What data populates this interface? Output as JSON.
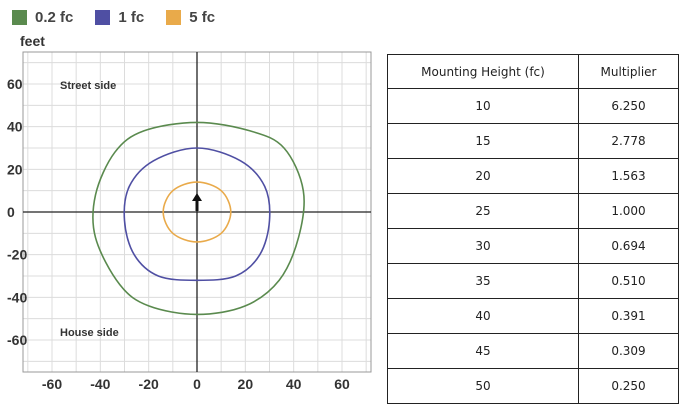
{
  "chart_data": [
    {
      "type": "line",
      "title": "",
      "ylabel": "feet",
      "xlim": [
        -72,
        72
      ],
      "ylim": [
        -75,
        75
      ],
      "x_ticks": [
        "-60",
        "-40",
        "-20",
        "0",
        "20",
        "40",
        "60"
      ],
      "y_ticks": [
        "60",
        "40",
        "20",
        "0",
        "-20",
        "-40",
        "-60"
      ],
      "grid": true,
      "annotations": {
        "top": "Street side",
        "bottom": "House side"
      },
      "legend_position": "top-left",
      "series": [
        {
          "name": "0.2 fc",
          "color": "#5a8a4e",
          "shape": "closed contour",
          "x": [
            0,
            22,
            36,
            44,
            42,
            34,
            20,
            0,
            -20,
            -32,
            -42,
            -42,
            -34,
            -22,
            0
          ],
          "y": [
            42,
            38,
            30,
            10,
            -12,
            -32,
            -44,
            -48,
            -44,
            -34,
            -12,
            8,
            28,
            38,
            42
          ]
        },
        {
          "name": "1 fc",
          "color": "#4f4fa3",
          "shape": "closed contour",
          "x": [
            0,
            18,
            28,
            30,
            26,
            16,
            0,
            -16,
            -26,
            -30,
            -28,
            -18,
            0
          ],
          "y": [
            30,
            24,
            12,
            -4,
            -20,
            -30,
            -32,
            -30,
            -20,
            -4,
            12,
            24,
            30
          ]
        },
        {
          "name": "5 fc",
          "color": "#e9aa4a",
          "shape": "closed contour",
          "x": [
            0,
            10,
            14,
            10,
            0,
            -10,
            -14,
            -10,
            0
          ],
          "y": [
            14,
            10,
            0,
            -10,
            -14,
            -10,
            0,
            10,
            14
          ]
        }
      ]
    },
    {
      "type": "table",
      "columns": [
        "Mounting Height (fc)",
        "Multiplier"
      ],
      "rows": [
        [
          "10",
          "6.250"
        ],
        [
          "15",
          "2.778"
        ],
        [
          "20",
          "1.563"
        ],
        [
          "25",
          "1.000"
        ],
        [
          "30",
          "0.694"
        ],
        [
          "35",
          "0.510"
        ],
        [
          "40",
          "0.391"
        ],
        [
          "45",
          "0.309"
        ],
        [
          "50",
          "0.250"
        ]
      ]
    }
  ]
}
